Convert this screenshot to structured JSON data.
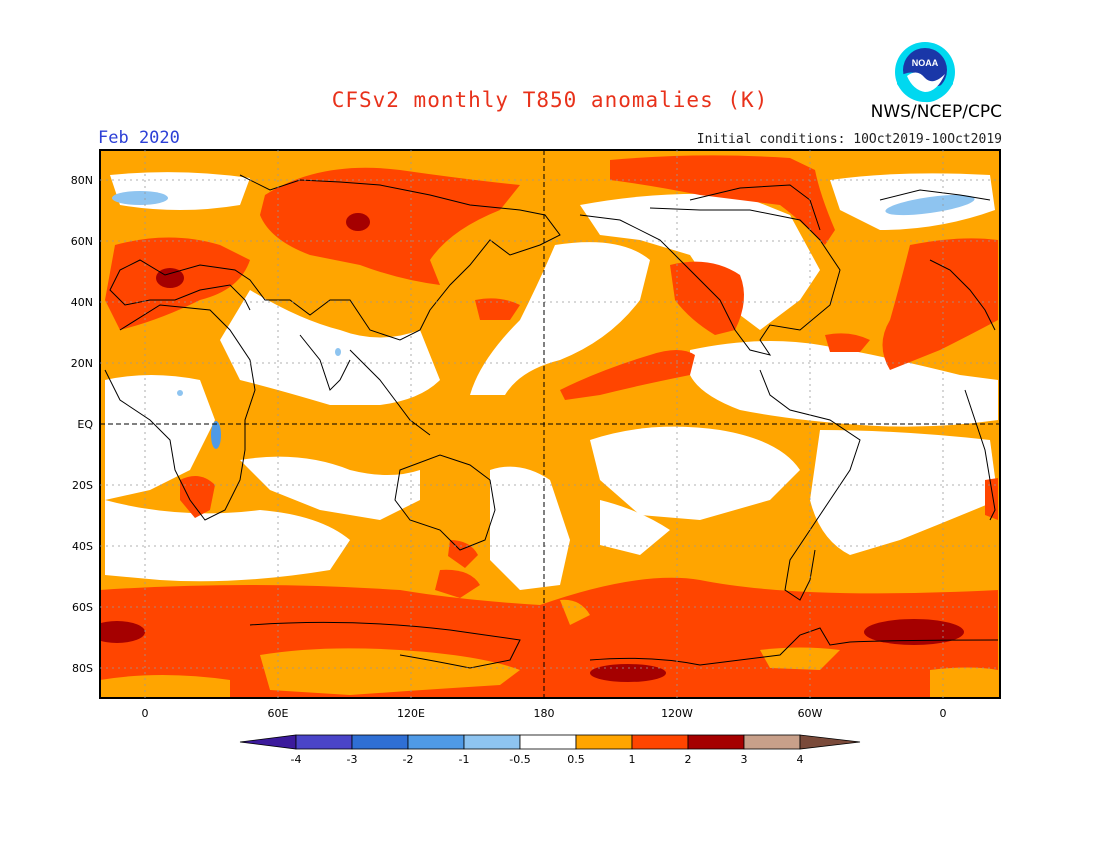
{
  "header": {
    "title": "CFSv2 monthly T850 anomalies (K)",
    "month": "Feb 2020",
    "initial_conditions": "Initial conditions: 10Oct2019-10Oct2019",
    "agency": "NWS/NCEP/CPC",
    "logo_text": "NOAA"
  },
  "axes": {
    "lat_labels": [
      "80N",
      "60N",
      "40N",
      "20N",
      "EQ",
      "20S",
      "40S",
      "60S",
      "80S"
    ],
    "lon_labels": [
      "0",
      "60E",
      "120E",
      "180",
      "120W",
      "60W",
      "0"
    ]
  },
  "colorbar": {
    "tick_labels": [
      "-4",
      "-3",
      "-2",
      "-1",
      "-0.5",
      "0.5",
      "1",
      "2",
      "3",
      "4"
    ],
    "colors": [
      "#3c1a9c",
      "#4a44c8",
      "#2f6fd4",
      "#4f9ae6",
      "#8ec4f0",
      "#ffffff",
      "#ffa500",
      "#ff4500",
      "#a50000",
      "#c8a08a",
      "#7a4a3a"
    ]
  }
}
